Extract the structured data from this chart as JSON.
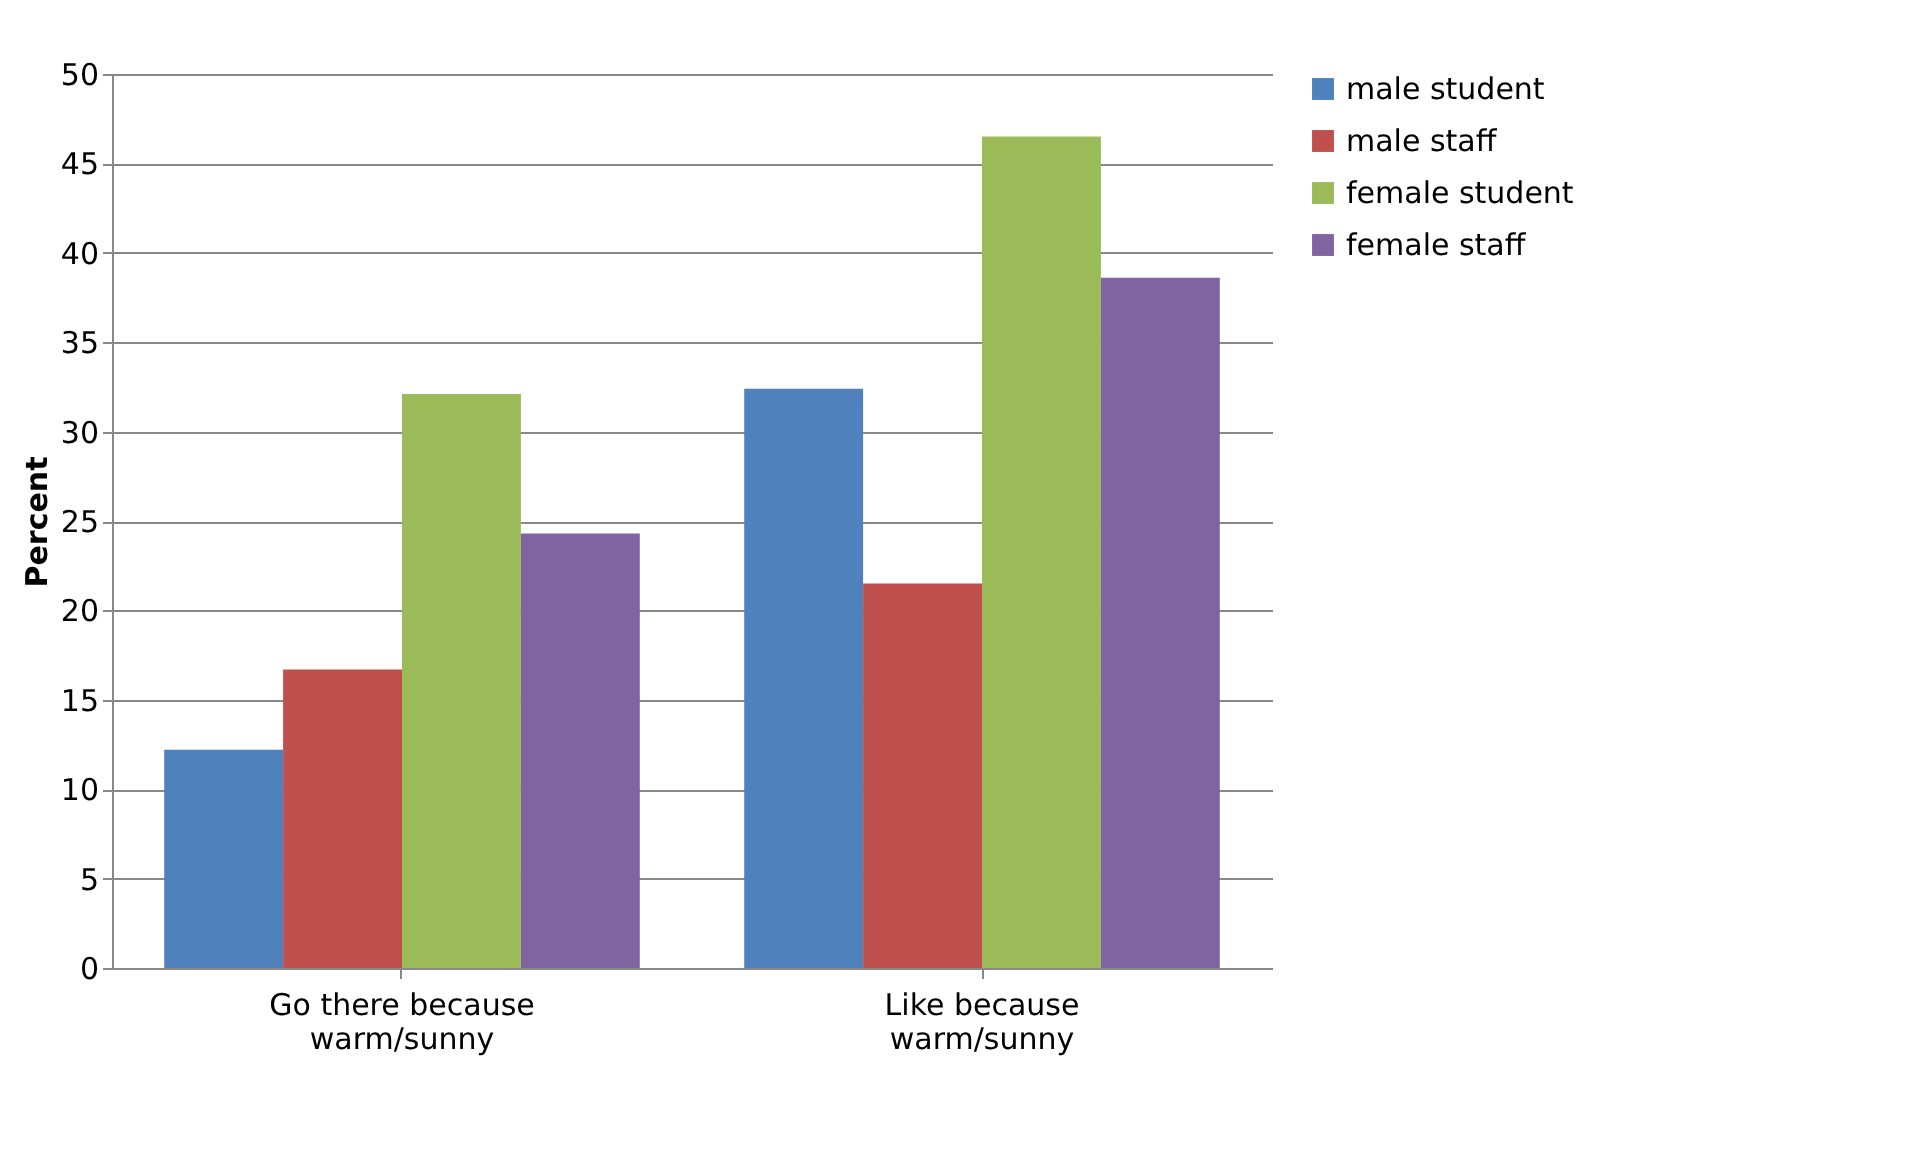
{
  "chart_data": {
    "type": "bar",
    "ylabel": "Percent",
    "categories": [
      "Go there because warm/sunny",
      "Like because warm/sunny"
    ],
    "series": [
      {
        "name": "male student",
        "color": "#4f81bd",
        "values": [
          12.2,
          32.4
        ]
      },
      {
        "name": "male staff",
        "color": "#c0504d",
        "values": [
          16.7,
          21.5
        ]
      },
      {
        "name": "female student",
        "color": "#9bbb59",
        "values": [
          32.1,
          46.5
        ]
      },
      {
        "name": "female staff",
        "color": "#8064a2",
        "values": [
          24.3,
          38.6
        ]
      }
    ],
    "ylim": [
      0,
      50
    ],
    "yticks": [
      0,
      5,
      10,
      15,
      20,
      25,
      30,
      35,
      40,
      45,
      50
    ],
    "grid": "y",
    "legend": "right"
  }
}
